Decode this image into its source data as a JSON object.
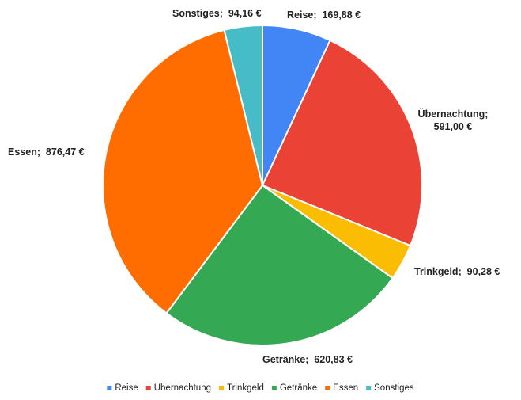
{
  "chart_data": {
    "type": "pie",
    "title": "",
    "legend_position": "bottom",
    "slices": [
      {
        "label": "Reise",
        "value": 169.88,
        "display": "169,88 €",
        "color": "#4285f4"
      },
      {
        "label": "Übernachtung",
        "value": 591.0,
        "display": "591,00 €",
        "color": "#ea4335"
      },
      {
        "label": "Trinkgeld",
        "value": 90.28,
        "display": "90,28 €",
        "color": "#fbbc04"
      },
      {
        "label": "Getränke",
        "value": 620.83,
        "display": "620,83 €",
        "color": "#34a853"
      },
      {
        "label": "Essen",
        "value": 876.47,
        "display": "876,47 €",
        "color": "#ff6d01"
      },
      {
        "label": "Sonstiges",
        "value": 94.16,
        "display": "94,16 €",
        "color": "#46bdc6"
      }
    ],
    "data_labels": [
      {
        "lines": [
          "Reise;  169,88 €"
        ]
      },
      {
        "lines": [
          "Übernachtung;",
          "591,00 €"
        ]
      },
      {
        "lines": [
          "Trinkgeld;  90,28 €"
        ]
      },
      {
        "lines": [
          "Getränke;  620,83 €"
        ]
      },
      {
        "lines": [
          "Essen;  876,47 €"
        ]
      },
      {
        "lines": [
          "Sonstiges;  94,16 €"
        ]
      }
    ]
  }
}
